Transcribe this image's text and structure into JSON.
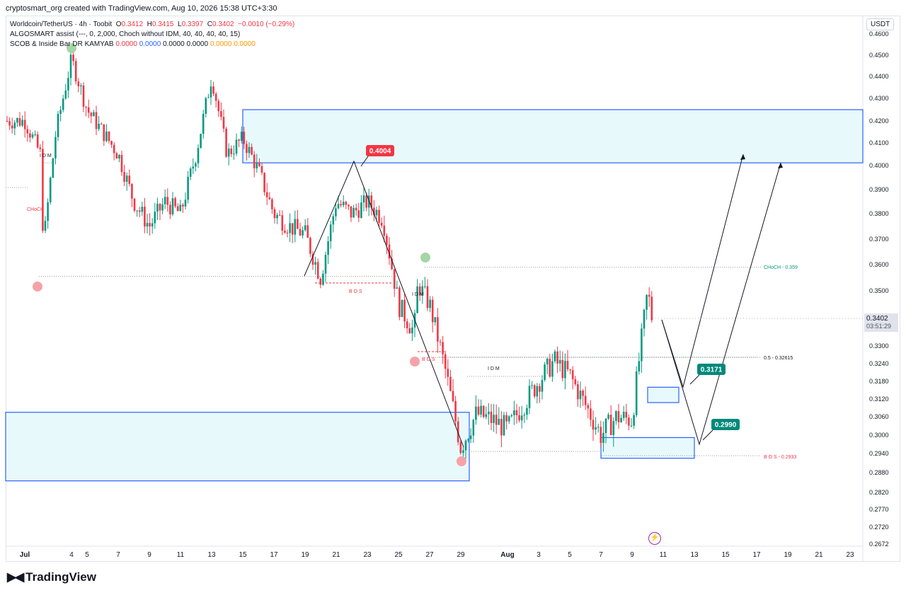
{
  "header": {
    "created_by": "cryptosmart_org created with TradingView.com, Aug 10, 2026 15:38 UTC+3:30"
  },
  "legend": {
    "symbol": "Worldcoin/TetherUS · 4h · Toobit",
    "o_label": "O",
    "o": "0.3412",
    "h_label": "H",
    "h": "0.3415",
    "l_label": "L",
    "l": "0.3397",
    "c_label": "C",
    "c": "0.3402",
    "change": "−0.0010 (−0.29%)",
    "indicator1": "ALGOSMART assist (---, 0, 2,000, Choch without IDM, 40, 40, 40, 40, 15)",
    "indicator2_name": "SCOB & Inside Bar DR KAMYAB",
    "indicator2_values": [
      "0.0000",
      "0.0000",
      "0.0000",
      "0.0000",
      "0.0000",
      "0.0000"
    ]
  },
  "currency": "USDT",
  "last_price": {
    "value": "0.3402",
    "countdown": "03:51:29"
  },
  "brand": "TradingView",
  "colors": {
    "up": "#089981",
    "down": "#f23645",
    "zone_fill": "#e8f9fb",
    "zone_border": "#2962ff"
  },
  "chart_data": {
    "type": "candlestick",
    "timeframe": "4h",
    "x_ticks": [
      "Jul",
      "4",
      "5",
      "7",
      "9",
      "11",
      "13",
      "15",
      "17",
      "19",
      "21",
      "23",
      "25",
      "27",
      "29",
      "Aug",
      "3",
      "5",
      "7",
      "9",
      "11",
      "13",
      "15",
      "17",
      "19",
      "21",
      "23"
    ],
    "y_ticks": [
      "0.4600",
      "0.4500",
      "0.4400",
      "0.4300",
      "0.4200",
      "0.4100",
      "0.4000",
      "0.3900",
      "0.3800",
      "0.3700",
      "0.3600",
      "0.3500",
      "0.3400",
      "0.3300",
      "0.3240",
      "0.3180",
      "0.3120",
      "0.3060",
      "0.3000",
      "0.2940",
      "0.2880",
      "0.2820",
      "0.2770",
      "0.2720",
      "0.2672"
    ],
    "price_path": [
      [
        "Jul 1",
        0.42
      ],
      [
        "Jul 2",
        0.405
      ],
      [
        "Jul 2",
        0.355
      ],
      [
        "Jul 3",
        0.415
      ],
      [
        "Jul 4",
        0.448
      ],
      [
        "Jul 5",
        0.425
      ],
      [
        "Jul 6",
        0.415
      ],
      [
        "Jul 7",
        0.405
      ],
      [
        "Jul 8",
        0.385
      ],
      [
        "Jul 9",
        0.375
      ],
      [
        "Jul 10",
        0.385
      ],
      [
        "Jul 11",
        0.38
      ],
      [
        "Jul 12",
        0.405
      ],
      [
        "Jul 13",
        0.44
      ],
      [
        "Jul 14",
        0.405
      ],
      [
        "Jul 15",
        0.412
      ],
      [
        "Jul 16",
        0.398
      ],
      [
        "Jul 17",
        0.38
      ],
      [
        "Jul 18",
        0.375
      ],
      [
        "Jul 19",
        0.372
      ],
      [
        "Jul 20",
        0.355
      ],
      [
        "Jul 21",
        0.385
      ],
      [
        "Jul 22",
        0.38
      ],
      [
        "Jul 23",
        0.385
      ],
      [
        "Jul 24",
        0.378
      ],
      [
        "Jul 25",
        0.345
      ],
      [
        "Jul 26",
        0.335
      ],
      [
        "Jul 26",
        0.355
      ],
      [
        "Jul 27",
        0.345
      ],
      [
        "Jul 28",
        0.322
      ],
      [
        "Jul 29",
        0.296
      ],
      [
        "Jul 30",
        0.307
      ],
      [
        "Jul 31",
        0.305
      ],
      [
        "Aug 1",
        0.302
      ],
      [
        "Aug 2",
        0.31
      ],
      [
        "Aug 3",
        0.318
      ],
      [
        "Aug 4",
        0.325
      ],
      [
        "Aug 5",
        0.32
      ],
      [
        "Aug 6",
        0.31
      ],
      [
        "Aug 7",
        0.3
      ],
      [
        "Aug 8",
        0.306
      ],
      [
        "Aug 9",
        0.305
      ],
      [
        "Aug 10",
        0.35
      ],
      [
        "Aug 10",
        0.3402
      ]
    ],
    "zones": [
      {
        "from": "Jul 15",
        "to": "Aug 23",
        "low": 0.4012,
        "high": 0.425
      },
      {
        "from": "Jul 1",
        "to": "Jul 29",
        "low": 0.2855,
        "high": 0.3075
      },
      {
        "from": "Aug 10",
        "to": "Aug 12",
        "low": 0.3108,
        "high": 0.316
      },
      {
        "from": "Aug 7",
        "to": "Aug 13",
        "low": 0.2925,
        "high": 0.2992
      }
    ],
    "annotations": [
      {
        "text": "0.4004",
        "date": "Jul 22",
        "price": 0.4004,
        "style": "red"
      },
      {
        "text": "0.3171",
        "date": "Aug 13",
        "price": 0.3171,
        "style": "teal"
      },
      {
        "text": "0.2990",
        "date": "Aug 13",
        "price": 0.299,
        "style": "teal"
      },
      {
        "text": "CHoCH - 0.359",
        "price": 0.359
      },
      {
        "text": "0.5 - 0.32615",
        "price": 0.32615
      },
      {
        "text": "B O S - 0.2933",
        "price": 0.2933
      },
      {
        "text": "B O S",
        "date": "Jul 21",
        "price": 0.3515
      },
      {
        "text": "B O S",
        "date": "Jul 26",
        "price": 0.3245
      },
      {
        "text": "I D M",
        "date": "Jul 1",
        "price": 0.403
      },
      {
        "text": "I D M",
        "date": "Jul 26",
        "price": 0.3485
      },
      {
        "text": "I D M",
        "date": "Aug 1",
        "price": 0.3232
      },
      {
        "text": "CHoCH",
        "date": "Jul 1",
        "price": 0.3815
      }
    ],
    "projection_paths": [
      [
        [
          "Aug 10",
          0.34
        ],
        [
          "Aug 12",
          0.317
        ],
        [
          "Aug 16",
          0.405
        ]
      ],
      [
        [
          "Aug 10",
          0.34
        ],
        [
          "Aug 13",
          0.297
        ],
        [
          "Aug 19",
          0.401
        ]
      ]
    ],
    "grid": false,
    "legend_position": "top-left"
  }
}
